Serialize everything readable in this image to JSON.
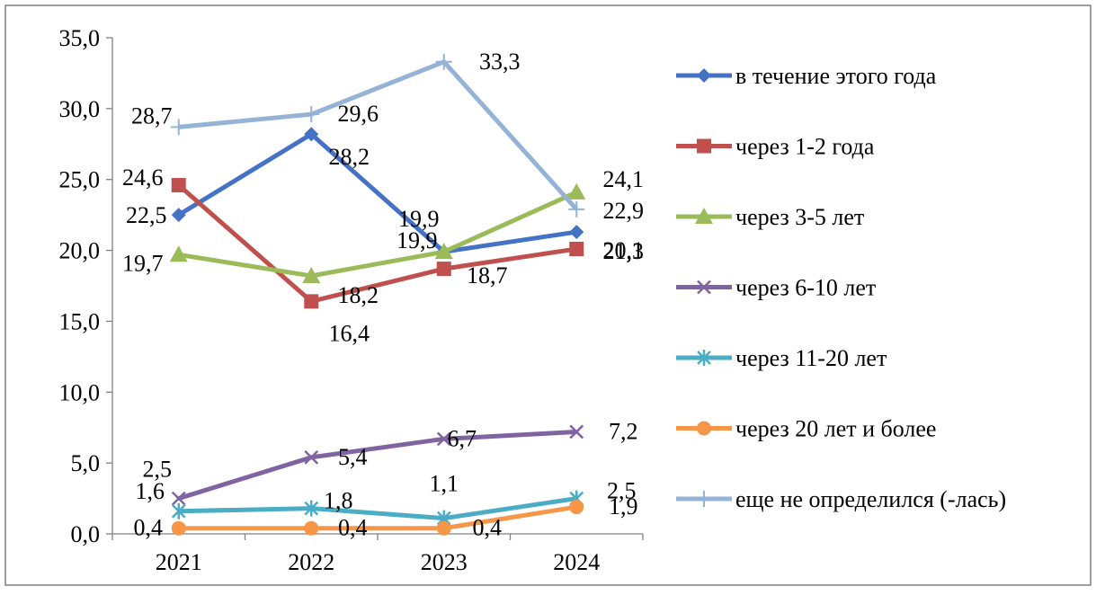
{
  "chart_data": {
    "type": "line",
    "title": "",
    "xlabel": "",
    "ylabel": "",
    "categories": [
      "2021",
      "2022",
      "2023",
      "2024"
    ],
    "ylim": [
      0,
      35
    ],
    "y_ticks": [
      "0,0",
      "5,0",
      "10,0",
      "15,0",
      "20,0",
      "25,0",
      "30,0",
      "35,0"
    ],
    "grid": false,
    "legend": "right",
    "series": [
      {
        "name": "в течение этого года",
        "color": "#4472C4",
        "marker": "diamond",
        "values": [
          22.5,
          28.2,
          19.9,
          21.3
        ],
        "labels": [
          "22,5",
          "28,2",
          "19,9",
          "21,3"
        ]
      },
      {
        "name": "через 1-2 года",
        "color": "#C0504D",
        "marker": "square",
        "values": [
          24.6,
          16.4,
          18.7,
          20.1
        ],
        "labels": [
          "24,6",
          "16,4",
          "18,7",
          "20,1"
        ]
      },
      {
        "name": "через 3-5 лет",
        "color": "#9BBB59",
        "marker": "triangle",
        "values": [
          19.7,
          18.2,
          19.9,
          24.1
        ],
        "labels": [
          "19,7",
          "18,2",
          "19,9",
          "24,1"
        ]
      },
      {
        "name": "через 6-10 лет",
        "color": "#8064A2",
        "marker": "x",
        "values": [
          2.5,
          5.4,
          6.7,
          7.2
        ],
        "labels": [
          "2,5",
          "5,4",
          "6,7",
          "7,2"
        ]
      },
      {
        "name": "через 11-20 лет",
        "color": "#4BACC6",
        "marker": "star",
        "values": [
          1.6,
          1.8,
          1.1,
          2.5
        ],
        "labels": [
          "1,6",
          "1,8",
          "1,1",
          "2,5"
        ]
      },
      {
        "name": "через 20 лет и более",
        "color": "#F79646",
        "marker": "circle",
        "values": [
          0.4,
          0.4,
          0.4,
          1.9
        ],
        "labels": [
          "0,4",
          "0,4",
          "0,4",
          "1,9"
        ]
      },
      {
        "name": "еще не определился (-лась)",
        "color": "#95B3D7",
        "marker": "plus",
        "values": [
          28.7,
          29.6,
          33.3,
          22.9
        ],
        "labels": [
          "28,7",
          "29,6",
          "33,3",
          "22,9"
        ]
      }
    ]
  }
}
